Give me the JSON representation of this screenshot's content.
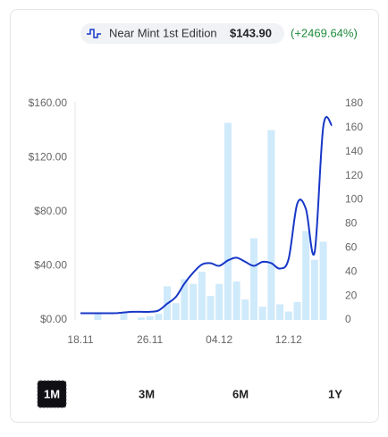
{
  "header": {
    "label": "Near Mint 1st Edition",
    "price": "$143.90",
    "change": "(+2469.64%)"
  },
  "ranges": [
    "1M",
    "3M",
    "6M",
    "1Y"
  ],
  "selected_range": 0,
  "chart_data": {
    "type": "line",
    "categories": [
      "18.11",
      null,
      null,
      null,
      null,
      null,
      null,
      null,
      "26.11",
      null,
      null,
      null,
      null,
      null,
      null,
      null,
      "04.12",
      null,
      null,
      null,
      null,
      null,
      null,
      null,
      "12.12",
      null,
      null,
      null,
      null,
      null
    ],
    "series": [
      {
        "type": "bar",
        "axis": "y2",
        "color": "#cfeafb",
        "values": [
          0,
          0,
          5,
          0,
          0,
          6,
          0,
          2,
          3,
          5,
          28,
          14,
          34,
          30,
          40,
          20,
          30,
          164,
          32,
          17,
          68,
          11,
          158,
          13,
          7,
          15,
          74,
          50,
          65,
          null
        ]
      },
      {
        "type": "line",
        "color": "#1737c8",
        "values": [
          5,
          5,
          5,
          5,
          5,
          5.5,
          6,
          6,
          6,
          7,
          12,
          17,
          27,
          35,
          41,
          42,
          40,
          44,
          46,
          43,
          40,
          43,
          42,
          38,
          45,
          86,
          82,
          50,
          143,
          143.9
        ]
      }
    ],
    "ylim": [
      0,
      160
    ],
    "yticks": [
      {
        "value": 0,
        "label": "$0.00"
      },
      {
        "value": 40,
        "label": "$40.00"
      },
      {
        "value": 80,
        "label": "$80.00"
      },
      {
        "value": 120,
        "label": "$120.00"
      },
      {
        "value": 160,
        "label": "$160.00"
      }
    ],
    "y2lim": [
      0,
      180
    ],
    "y2ticks": [
      0,
      20,
      40,
      60,
      80,
      100,
      120,
      140,
      160,
      180
    ]
  }
}
